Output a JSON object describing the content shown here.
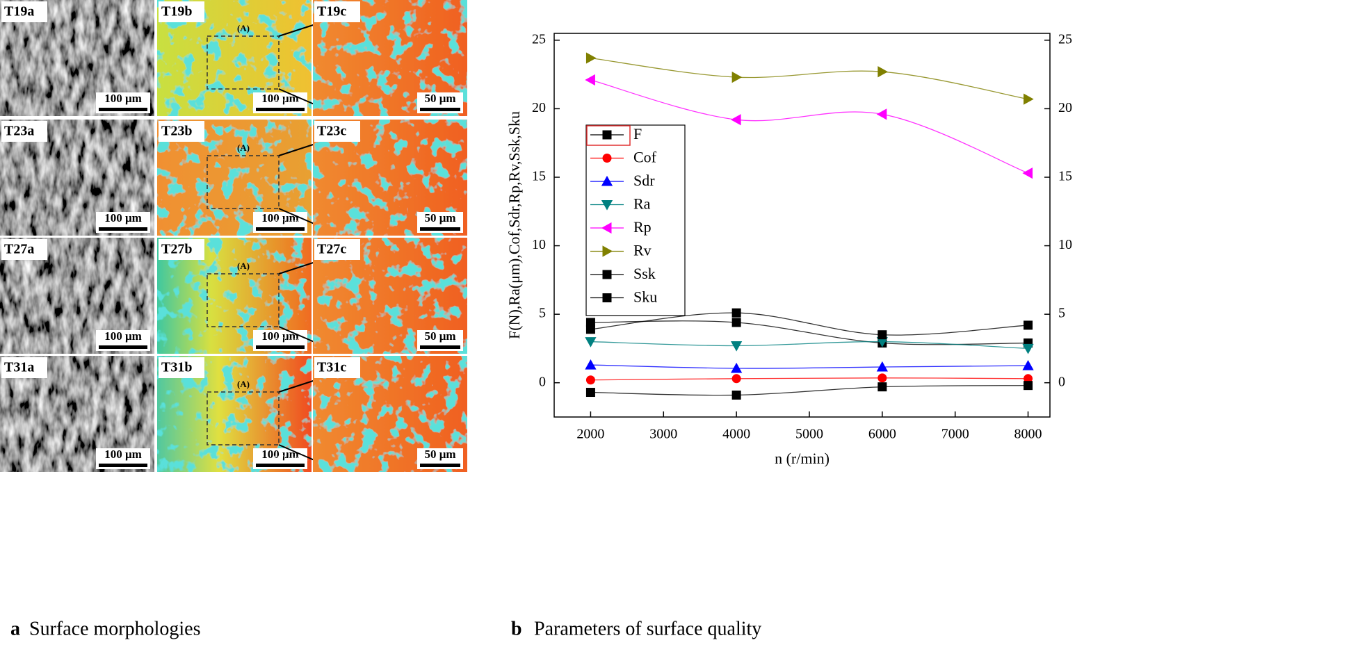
{
  "panels": {
    "rows": [
      {
        "labels": [
          "T19a",
          "T19b",
          "T19c"
        ],
        "scale_bars": [
          "100 μm",
          "100 μm",
          "50 μm"
        ],
        "inset_label": "(A)",
        "inset_scale": "100 μm"
      },
      {
        "labels": [
          "T23a",
          "T23b",
          "T23c"
        ],
        "scale_bars": [
          "100 μm",
          "100 μm",
          "50 μm"
        ],
        "inset_label": "(A)",
        "inset_scale": "100 μm"
      },
      {
        "labels": [
          "T27a",
          "T27b",
          "T27c"
        ],
        "scale_bars": [
          "100 μm",
          "100 μm",
          "50 μm"
        ],
        "inset_label": "(A)",
        "inset_scale": "100 μm"
      },
      {
        "labels": [
          "T31a",
          "T31b",
          "T31c"
        ],
        "scale_bars": [
          "100 μm",
          "100 μm",
          "50 μm"
        ],
        "inset_label": "(A)",
        "inset_scale": "100 μm"
      }
    ]
  },
  "captions": [
    {
      "letter": "a",
      "text": "Surface morphologies"
    },
    {
      "letter": "b",
      "text": "Parameters of surface quality"
    }
  ],
  "chart_data": {
    "type": "line",
    "x_label": "n (r/min)",
    "y_label": "F(N),Ra(μm),Cof,Sdr,Rp,Rv,Ssk,Sku",
    "x": [
      2000,
      4000,
      6000,
      8000
    ],
    "xlim": [
      1500,
      8300
    ],
    "xticks": [
      2000,
      3000,
      4000,
      5000,
      6000,
      7000,
      8000
    ],
    "ylim": [
      -2.5,
      25.5
    ],
    "yticks": [
      0,
      5,
      10,
      15,
      20,
      25
    ],
    "y2lim": [
      -2.5,
      25.5
    ],
    "y2ticks": [
      0,
      5,
      10,
      15,
      20,
      25
    ],
    "legend": "left",
    "smooth": true,
    "series": [
      {
        "name": "F",
        "color": "#000000",
        "marker": "square",
        "values": [
          4.4,
          4.4,
          2.9,
          2.9
        ]
      },
      {
        "name": "Cof",
        "color": "#ff0000",
        "marker": "circle",
        "values": [
          0.2,
          0.3,
          0.35,
          0.3
        ]
      },
      {
        "name": "Sdr",
        "color": "#0000ff",
        "marker": "triangle-up",
        "values": [
          1.3,
          1.05,
          1.15,
          1.25
        ]
      },
      {
        "name": "Ra",
        "color": "#008080",
        "marker": "triangle-down",
        "values": [
          3.0,
          2.7,
          3.0,
          2.5
        ]
      },
      {
        "name": "Rp",
        "color": "#ff00ff",
        "marker": "triangle-left",
        "values": [
          22.1,
          19.2,
          19.6,
          15.3
        ]
      },
      {
        "name": "Rv",
        "color": "#808000",
        "marker": "triangle-right",
        "values": [
          23.7,
          22.3,
          22.7,
          20.7
        ]
      },
      {
        "name": "Ssk",
        "color": "#000000",
        "marker": "square",
        "values": [
          -0.7,
          -0.9,
          -0.3,
          -0.2
        ]
      },
      {
        "name": "Sku",
        "color": "#000000",
        "marker": "square",
        "values": [
          3.9,
          5.1,
          3.5,
          4.2
        ]
      }
    ]
  }
}
